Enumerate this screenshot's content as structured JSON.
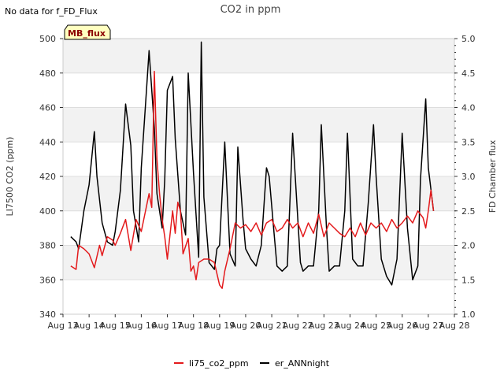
{
  "header": {
    "no_data_note": "No data for f_FD_Flux"
  },
  "chart_data": {
    "type": "line",
    "title": "CO2 in ppm",
    "ylabel_left": "LI7500 CO2 (ppm)",
    "ylabel_right": "FD Chamber flux",
    "badge": "MB_flux",
    "xlim_days": [
      13,
      28
    ],
    "ylim_left": [
      340,
      500
    ],
    "ylim_right": [
      1.0,
      5.0
    ],
    "x_ticks": [
      "Aug 13",
      "Aug 14",
      "Aug 15",
      "Aug 16",
      "Aug 17",
      "Aug 18",
      "Aug 19",
      "Aug 20",
      "Aug 21",
      "Aug 22",
      "Aug 23",
      "Aug 24",
      "Aug 25",
      "Aug 26",
      "Aug 27",
      "Aug 28"
    ],
    "y_ticks_left": [
      340,
      360,
      380,
      400,
      420,
      440,
      460,
      480,
      500
    ],
    "y_ticks_right": [
      "1.0",
      "1.5",
      "2.0",
      "2.5",
      "3.0",
      "3.5",
      "4.0",
      "4.5",
      "5.0"
    ],
    "legend": [
      {
        "name": "li75_co2_ppm",
        "color": "#e31a1c"
      },
      {
        "name": "er_ANNnight",
        "color": "#000000"
      }
    ],
    "series": [
      {
        "name": "li75_co2_ppm",
        "color": "#e31a1c",
        "axis": "left",
        "x": [
          13.3,
          13.5,
          13.6,
          13.8,
          14.0,
          14.2,
          14.4,
          14.5,
          14.7,
          14.9,
          15.0,
          15.2,
          15.4,
          15.6,
          15.8,
          16.0,
          16.3,
          16.4,
          16.5,
          16.6,
          16.7,
          16.8,
          16.9,
          17.0,
          17.2,
          17.3,
          17.4,
          17.5,
          17.6,
          17.8,
          17.9,
          18.0,
          18.1,
          18.2,
          18.4,
          18.6,
          18.8,
          19.0,
          19.1,
          19.2,
          19.4,
          19.6,
          19.8,
          20.0,
          20.2,
          20.4,
          20.6,
          20.8,
          21.0,
          21.2,
          21.4,
          21.6,
          21.8,
          22.0,
          22.2,
          22.4,
          22.6,
          22.8,
          23.0,
          23.2,
          23.4,
          23.6,
          23.8,
          24.0,
          24.2,
          24.4,
          24.6,
          24.8,
          25.0,
          25.2,
          25.4,
          25.6,
          25.8,
          26.0,
          26.2,
          26.4,
          26.6,
          26.8,
          26.9,
          27.0,
          27.1,
          27.2
        ],
        "values": [
          368,
          366,
          380,
          378,
          375,
          367,
          380,
          374,
          385,
          383,
          380,
          387,
          395,
          377,
          395,
          388,
          410,
          402,
          481,
          430,
          410,
          395,
          385,
          372,
          400,
          387,
          405,
          400,
          375,
          384,
          365,
          368,
          360,
          370,
          372,
          372,
          370,
          357,
          355,
          365,
          378,
          393,
          390,
          392,
          388,
          393,
          386,
          393,
          395,
          388,
          390,
          395,
          390,
          393,
          385,
          393,
          387,
          398,
          385,
          393,
          390,
          387,
          385,
          390,
          385,
          393,
          386,
          393,
          390,
          393,
          388,
          395,
          390,
          393,
          397,
          393,
          400,
          396,
          390,
          400,
          412,
          400
        ]
      },
      {
        "name": "er_ANNnight",
        "color": "#000000",
        "axis": "left",
        "x": [
          13.3,
          13.5,
          13.6,
          13.8,
          14.0,
          14.2,
          14.3,
          14.5,
          14.7,
          14.9,
          15.0,
          15.2,
          15.4,
          15.6,
          15.7,
          15.9,
          16.0,
          16.2,
          16.3,
          16.5,
          16.6,
          16.8,
          16.9,
          17.0,
          17.2,
          17.3,
          17.5,
          17.7,
          17.8,
          18.0,
          18.2,
          18.3,
          18.4,
          18.6,
          18.8,
          18.9,
          19.0,
          19.2,
          19.4,
          19.6,
          19.7,
          19.9,
          20.0,
          20.2,
          20.4,
          20.6,
          20.8,
          20.9,
          21.1,
          21.2,
          21.4,
          21.6,
          21.8,
          21.9,
          22.1,
          22.2,
          22.4,
          22.6,
          22.8,
          22.9,
          23.1,
          23.2,
          23.4,
          23.6,
          23.8,
          23.9,
          24.1,
          24.3,
          24.5,
          24.7,
          24.9,
          25.0,
          25.2,
          25.4,
          25.6,
          25.8,
          26.0,
          26.2,
          26.4,
          26.6,
          26.7,
          26.9,
          27.0,
          27.2
        ],
        "values": [
          385,
          382,
          378,
          400,
          415,
          446,
          420,
          393,
          382,
          380,
          388,
          412,
          462,
          438,
          400,
          382,
          425,
          470,
          493,
          448,
          410,
          390,
          418,
          470,
          478,
          442,
          400,
          386,
          480,
          422,
          373,
          498,
          408,
          370,
          366,
          378,
          380,
          440,
          375,
          368,
          437,
          395,
          378,
          372,
          368,
          380,
          425,
          420,
          385,
          368,
          365,
          368,
          445,
          420,
          370,
          365,
          368,
          368,
          400,
          450,
          390,
          365,
          368,
          368,
          400,
          445,
          372,
          368,
          368,
          405,
          450,
          420,
          372,
          362,
          357,
          372,
          445,
          390,
          360,
          368,
          418,
          465,
          425,
          400
        ]
      }
    ]
  }
}
